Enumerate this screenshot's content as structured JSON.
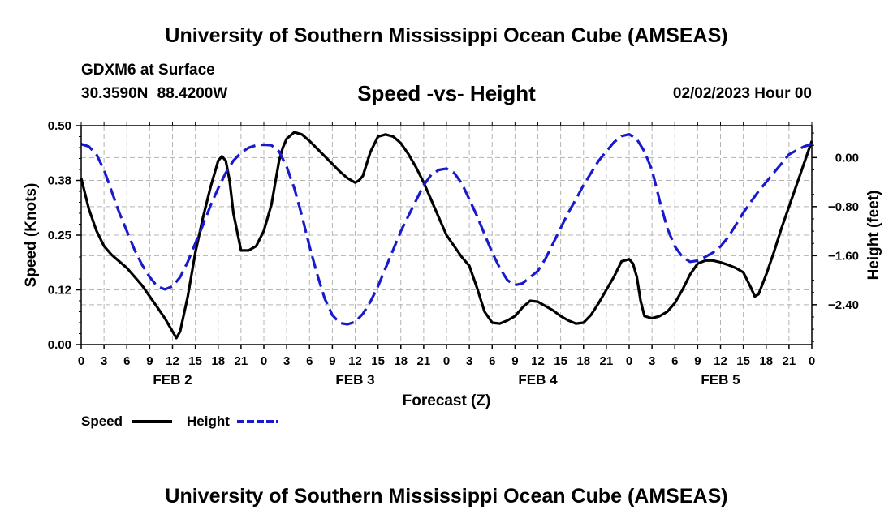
{
  "header": {
    "title": "University of Southern Mississippi Ocean Cube (AMSEAS)",
    "station": "GDXM6 at Surface",
    "coordinates": "30.3590N  88.4200W",
    "subtitle": "Speed -vs- Height",
    "datetime": "02/02/2023 Hour 00"
  },
  "footer": {
    "title": "University of Southern Mississippi Ocean Cube (AMSEAS)"
  },
  "chart_data": {
    "type": "line",
    "title": "Speed -vs- Height",
    "xlabel": "Forecast (Z)",
    "ylabel": "Speed (Knots)",
    "y2label": "Height (feet)",
    "xlim": [
      0,
      96
    ],
    "ylim": [
      0,
      0.5
    ],
    "y2lim": [
      -3.05,
      0.52
    ],
    "x_ticks": [
      0,
      3,
      6,
      9,
      12,
      15,
      18,
      21,
      24,
      27,
      30,
      33,
      36,
      39,
      42,
      45,
      48,
      51,
      54,
      57,
      60,
      63,
      66,
      69,
      72,
      75,
      78,
      81,
      84,
      87,
      90,
      93,
      96
    ],
    "x_tick_labels": [
      "0",
      "3",
      "6",
      "9",
      "12",
      "15",
      "18",
      "21",
      "0",
      "3",
      "6",
      "9",
      "12",
      "15",
      "18",
      "21",
      "0",
      "3",
      "6",
      "9",
      "12",
      "15",
      "18",
      "21",
      "0",
      "3",
      "6",
      "9",
      "12",
      "15",
      "18",
      "21",
      "0"
    ],
    "date_labels": [
      {
        "x": 12,
        "label": "FEB 2"
      },
      {
        "x": 36,
        "label": "FEB 3"
      },
      {
        "x": 60,
        "label": "FEB 4"
      },
      {
        "x": 84,
        "label": "FEB 5"
      }
    ],
    "y_ticks": [
      0.0,
      0.125,
      0.25,
      0.375,
      0.5
    ],
    "y_tick_labels": [
      "0.00",
      "0.12",
      "0.25",
      "0.38",
      "0.50"
    ],
    "y2_ticks": [
      0.0,
      -0.8,
      -1.6,
      -2.4
    ],
    "y2_tick_labels": [
      "0.00",
      "−0.80",
      "−1.60",
      "−2.40"
    ],
    "grid": true,
    "series": [
      {
        "name": "Speed",
        "axis": "left",
        "color": "#000000",
        "dash": "solid",
        "x": [
          0,
          1,
          2,
          3,
          4,
          6,
          8,
          10,
          11,
          12,
          12.5,
          13,
          14,
          15,
          16,
          17,
          18,
          18.5,
          19,
          19.5,
          20,
          21,
          22,
          23,
          24,
          25,
          26,
          26.5,
          27,
          28,
          29,
          30,
          32,
          34,
          35,
          36,
          36.5,
          37,
          38,
          39,
          40,
          41,
          42,
          43,
          44,
          45,
          46,
          47,
          48,
          49,
          50,
          51,
          52,
          53,
          54,
          55,
          56,
          57,
          58,
          59,
          60,
          61,
          62,
          63,
          64,
          65,
          66,
          67,
          68,
          69,
          70,
          71,
          72,
          72.5,
          73,
          73.5,
          74,
          75,
          76,
          77,
          78,
          79,
          80,
          81,
          82,
          83,
          84,
          85,
          86,
          87,
          88,
          88.5,
          89,
          90,
          91,
          92,
          93,
          94,
          95,
          96
        ],
        "values": [
          0.38,
          0.31,
          0.26,
          0.225,
          0.205,
          0.175,
          0.135,
          0.085,
          0.06,
          0.03,
          0.015,
          0.03,
          0.11,
          0.21,
          0.29,
          0.36,
          0.42,
          0.43,
          0.42,
          0.375,
          0.3,
          0.215,
          0.215,
          0.225,
          0.26,
          0.32,
          0.42,
          0.45,
          0.47,
          0.485,
          0.48,
          0.465,
          0.43,
          0.395,
          0.38,
          0.37,
          0.375,
          0.385,
          0.44,
          0.475,
          0.48,
          0.475,
          0.46,
          0.435,
          0.405,
          0.37,
          0.33,
          0.29,
          0.25,
          0.225,
          0.2,
          0.18,
          0.13,
          0.075,
          0.05,
          0.048,
          0.055,
          0.065,
          0.085,
          0.1,
          0.098,
          0.088,
          0.078,
          0.065,
          0.055,
          0.048,
          0.05,
          0.068,
          0.095,
          0.125,
          0.155,
          0.19,
          0.195,
          0.185,
          0.155,
          0.1,
          0.065,
          0.06,
          0.065,
          0.075,
          0.095,
          0.125,
          0.16,
          0.185,
          0.192,
          0.192,
          0.188,
          0.182,
          0.175,
          0.165,
          0.13,
          0.11,
          0.115,
          0.16,
          0.21,
          0.265,
          0.315,
          0.365,
          0.415,
          0.465
        ]
      },
      {
        "name": "Height",
        "axis": "right",
        "color": "#1a1acc",
        "dash": "dashed",
        "x": [
          0,
          1,
          2,
          3,
          4,
          5,
          6,
          7,
          8,
          9,
          10,
          11,
          12,
          13,
          14,
          15,
          16,
          17,
          18,
          19,
          20,
          21,
          22,
          23,
          24,
          25,
          26,
          27,
          28,
          29,
          30,
          31,
          32,
          33,
          34,
          35,
          36,
          37,
          38,
          39,
          40,
          41,
          42,
          43,
          44,
          45,
          46,
          47,
          48,
          49,
          50,
          51,
          52,
          53,
          54,
          55,
          56,
          57,
          58,
          59,
          60,
          61,
          62,
          63,
          64,
          65,
          66,
          67,
          68,
          69,
          70,
          71,
          72,
          73,
          74,
          75,
          76,
          77,
          78,
          79,
          80,
          81,
          82,
          83,
          84,
          85,
          86,
          87,
          88,
          89,
          90,
          91,
          92,
          93,
          94,
          95,
          96
        ],
        "values": [
          0.22,
          0.18,
          0.05,
          -0.2,
          -0.55,
          -0.9,
          -1.2,
          -1.5,
          -1.75,
          -1.95,
          -2.1,
          -2.15,
          -2.1,
          -1.95,
          -1.7,
          -1.4,
          -1.1,
          -0.78,
          -0.5,
          -0.25,
          -0.05,
          0.08,
          0.16,
          0.2,
          0.21,
          0.2,
          0.1,
          -0.15,
          -0.5,
          -0.95,
          -1.45,
          -1.9,
          -2.3,
          -2.57,
          -2.7,
          -2.72,
          -2.68,
          -2.55,
          -2.35,
          -2.1,
          -1.8,
          -1.5,
          -1.2,
          -0.95,
          -0.7,
          -0.45,
          -0.28,
          -0.2,
          -0.18,
          -0.25,
          -0.42,
          -0.68,
          -0.95,
          -1.25,
          -1.55,
          -1.8,
          -2.0,
          -2.08,
          -2.05,
          -1.95,
          -1.85,
          -1.65,
          -1.4,
          -1.15,
          -0.9,
          -0.68,
          -0.45,
          -0.25,
          -0.05,
          0.1,
          0.25,
          0.35,
          0.38,
          0.3,
          0.1,
          -0.2,
          -0.7,
          -1.15,
          -1.45,
          -1.62,
          -1.7,
          -1.68,
          -1.62,
          -1.55,
          -1.45,
          -1.3,
          -1.1,
          -0.9,
          -0.72,
          -0.55,
          -0.4,
          -0.25,
          -0.1,
          0.05,
          0.12,
          0.18,
          0.22
        ]
      }
    ],
    "legend": {
      "position": "bottom-left",
      "entries": [
        {
          "label": "Speed",
          "color": "#000000",
          "dash": "solid"
        },
        {
          "label": "Height",
          "color": "#1a1acc",
          "dash": "dashed"
        }
      ]
    }
  }
}
